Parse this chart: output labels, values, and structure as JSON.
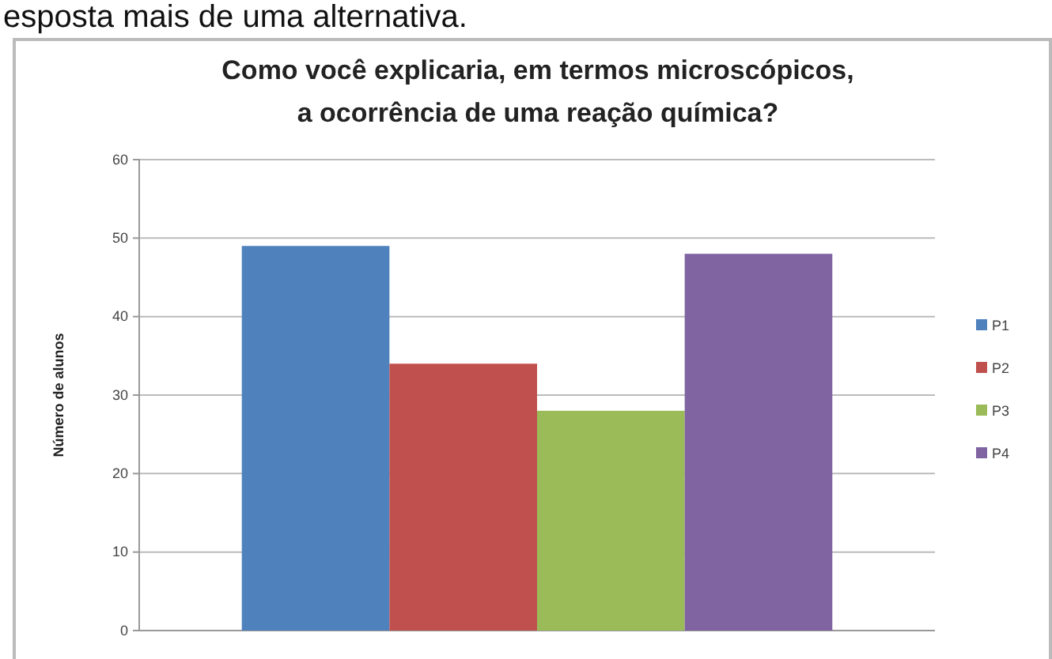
{
  "chart_data": {
    "type": "bar",
    "title": "Como você explicaria, em termos microscópicos,\na ocorrência de uma reação química?",
    "ylabel": "Número de alunos",
    "annotations": [
      "esposta mais de uma alternativa."
    ],
    "categories": [
      null
    ],
    "series": [
      {
        "name": "P1",
        "color": "#4f81bd",
        "values": [
          49
        ]
      },
      {
        "name": "P2",
        "color": "#c0504d",
        "values": [
          34
        ]
      },
      {
        "name": "P3",
        "color": "#9bbb59",
        "values": [
          28
        ]
      },
      {
        "name": "P4",
        "color": "#8064a2",
        "values": [
          48
        ]
      }
    ],
    "ylim": [
      0,
      60
    ],
    "yticks": [
      0,
      10,
      20,
      30,
      40,
      50,
      60
    ],
    "grid": "y",
    "legend": "right"
  }
}
